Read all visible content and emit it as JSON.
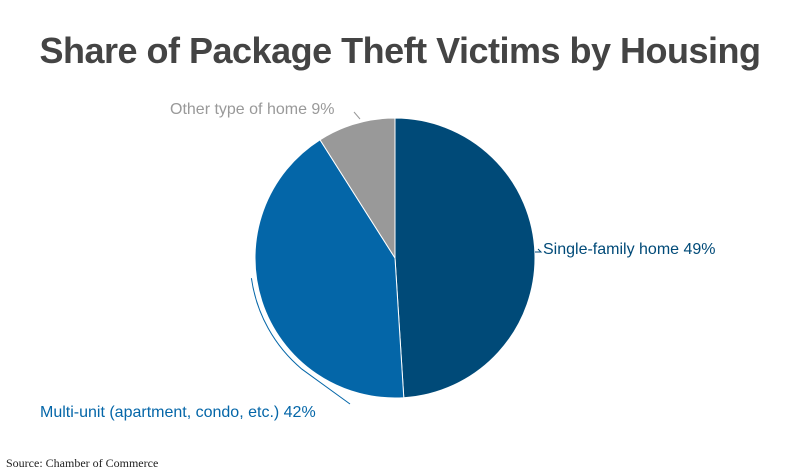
{
  "title": "Share of Package Theft Victims by Housing",
  "source": "Source: Chamber of Commerce",
  "chart_data": {
    "type": "pie",
    "title": "Share of Package Theft Victims by Housing",
    "slices": [
      {
        "label": "Single-family home 49%",
        "name": "Single-family home",
        "value": 49,
        "color": "#004a78"
      },
      {
        "label": "Multi-unit (apartment, condo, etc.) 42%",
        "name": "Multi-unit (apartment, condo, etc.)",
        "value": 42,
        "color": "#0466a8"
      },
      {
        "label": "Other type of home 9%",
        "name": "Other type of home",
        "value": 9,
        "color": "#999999"
      }
    ],
    "start_angle": "12 o'clock",
    "direction": "clockwise",
    "legend": "none (direct labels)"
  }
}
